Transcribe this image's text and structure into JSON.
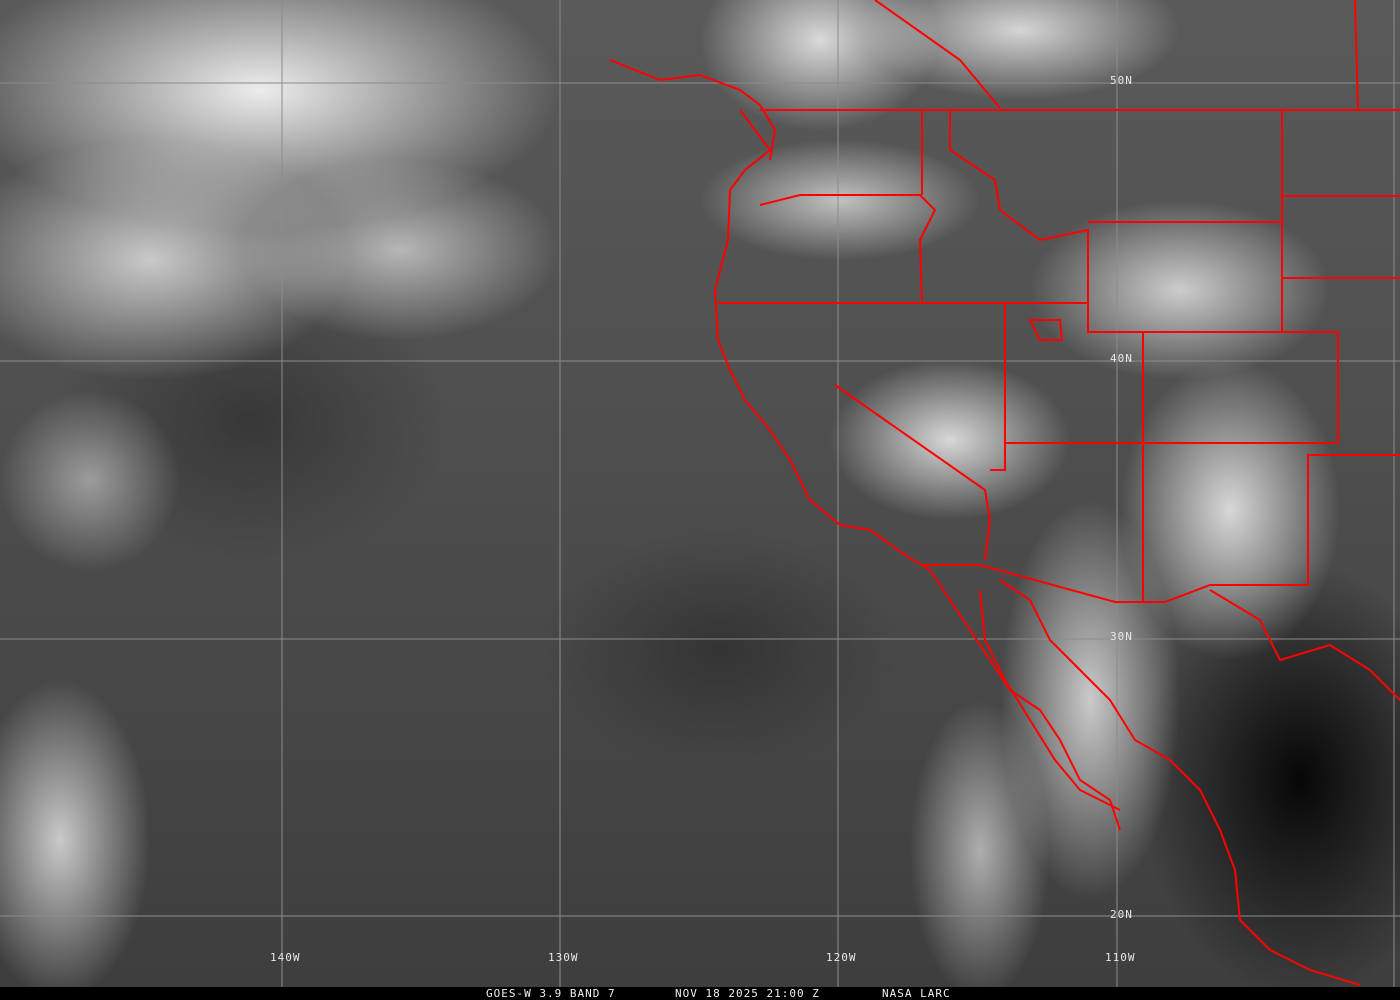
{
  "caption": {
    "product": "GOES-W 3.9 BAND 7",
    "datetime": "NOV 18 2025 21:00 Z",
    "source": "NASA LARC"
  },
  "grid_labels": {
    "longitudes": [
      "140W",
      "130W",
      "120W",
      "110W"
    ],
    "latitudes": [
      "50N",
      "40N",
      "30N",
      "20N"
    ]
  },
  "colors": {
    "borders": "#ff0000",
    "grid": "#8c8c8c",
    "caption_bg": "#000000"
  }
}
